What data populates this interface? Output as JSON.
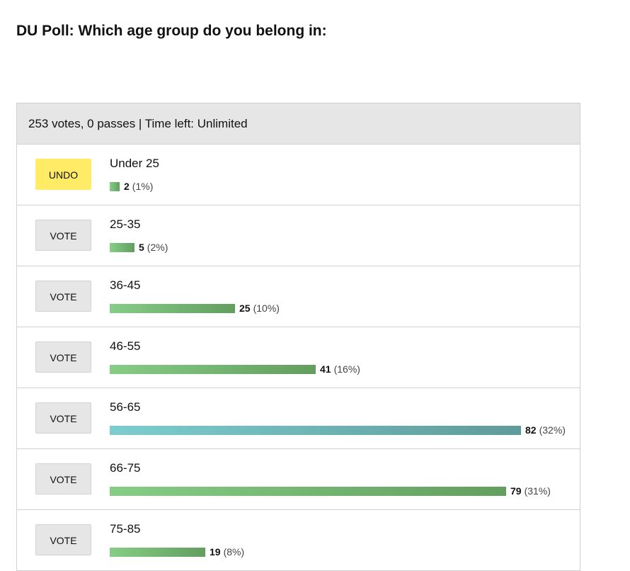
{
  "title": "DU Poll: Which age group do you belong in:",
  "status": "253 votes, 0 passes | Time left: Unlimited",
  "options": [
    {
      "label": "Under 25",
      "votes": "2",
      "percent": "(1%)",
      "button": "UNDO",
      "selected": true
    },
    {
      "label": "25-35",
      "votes": "5",
      "percent": "(2%)",
      "button": "VOTE"
    },
    {
      "label": "36-45",
      "votes": "25",
      "percent": "(10%)",
      "button": "VOTE"
    },
    {
      "label": "46-55",
      "votes": "41",
      "percent": "(16%)",
      "button": "VOTE"
    },
    {
      "label": "56-65",
      "votes": "82",
      "percent": "(32%)",
      "button": "VOTE",
      "leading": true
    },
    {
      "label": "66-75",
      "votes": "79",
      "percent": "(31%)",
      "button": "VOTE"
    },
    {
      "label": "75-85",
      "votes": "19",
      "percent": "(8%)",
      "button": "VOTE"
    }
  ],
  "colors": {
    "undo": "#ffeb66",
    "bar": "#86cd86",
    "leading_bar": "#7ccdd0"
  }
}
